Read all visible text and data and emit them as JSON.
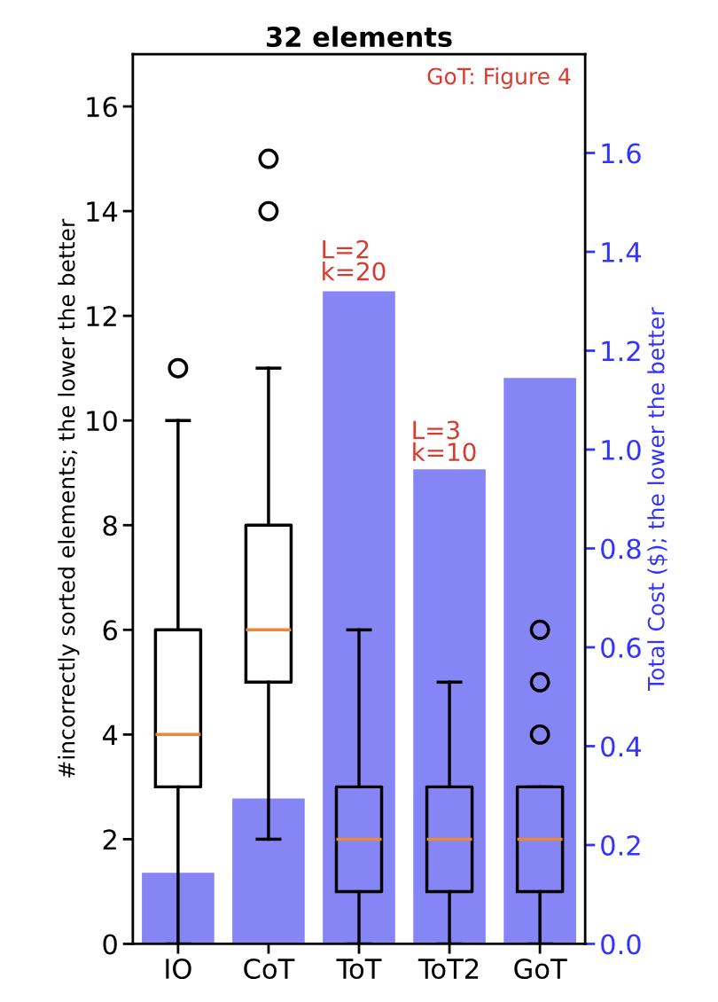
{
  "chart_data": {
    "type": "box",
    "title": "32 elements",
    "categories": [
      "IO",
      "CoT",
      "ToT",
      "ToT2",
      "GoT"
    ],
    "ylabel": "#incorrectly sorted elements; the lower the better",
    "y2label": "Total Cost ($); the lower the better",
    "ylim": [
      0,
      17
    ],
    "yticks": [
      0,
      2,
      4,
      6,
      8,
      10,
      12,
      14,
      16
    ],
    "y2lim": [
      0,
      1.8
    ],
    "y2ticks": [
      {
        "value": 0,
        "label": "0.0"
      },
      0.2,
      0.4,
      0.6,
      0.8,
      {
        "value": 1,
        "label": "1.0"
      },
      1.2,
      1.4,
      1.6
    ],
    "boxes": [
      {
        "low": 0,
        "q1": 3,
        "median": 4,
        "q3": 6,
        "high": 10,
        "outliers": [
          11
        ]
      },
      {
        "low": 2,
        "q1": 5,
        "median": 6,
        "q3": 8,
        "high": 11,
        "outliers": [
          14,
          15
        ]
      },
      {
        "low": 0,
        "q1": 1,
        "median": 2,
        "q3": 3,
        "high": 6
      },
      {
        "low": 0,
        "q1": 1,
        "median": 2,
        "q3": 3,
        "high": 5
      },
      {
        "low": 0,
        "q1": 1,
        "median": 2,
        "q3": 3,
        "high": 3,
        "outliers": [
          4,
          5,
          6
        ]
      }
    ],
    "series": [
      {
        "type": "bar",
        "axis": "y2",
        "color": "#8585f5",
        "values": [
          0.144,
          0.294,
          1.32,
          0.96,
          1.145
        ]
      }
    ],
    "annotations": [
      "GoT: Figure 4",
      "L=2\nk=20",
      "L=3\nk=10"
    ],
    "grid": false,
    "legend": false
  }
}
